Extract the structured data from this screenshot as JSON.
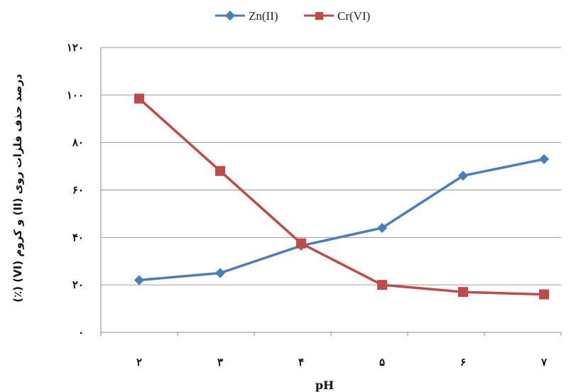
{
  "chart_data": {
    "type": "line",
    "categories": [
      "۲",
      "۳",
      "۴",
      "۵",
      "۶",
      "۷"
    ],
    "x": [
      2,
      3,
      4,
      5,
      6,
      7
    ],
    "xlabel": "pH",
    "ylabel": "درصد حذف فلزات روی (II) و کروم (VI) (٪)",
    "ylim": [
      0,
      120
    ],
    "yticks": [
      0,
      20,
      40,
      60,
      80,
      100,
      120
    ],
    "ytick_labels": [
      "۰",
      "۲۰",
      "۴۰",
      "۶۰",
      "۸۰",
      "۱۰۰",
      "۱۲۰"
    ],
    "grid": true,
    "legend_position": "top-center",
    "series": [
      {
        "name": "Zn(II)",
        "color": "#4a7ebb",
        "marker": "diamond",
        "values": [
          22,
          25,
          36.5,
          44,
          66,
          73
        ]
      },
      {
        "name": "Cr(VI)",
        "color": "#be4b48",
        "marker": "square",
        "values": [
          98.5,
          68,
          37.5,
          20,
          17,
          16
        ]
      }
    ]
  }
}
